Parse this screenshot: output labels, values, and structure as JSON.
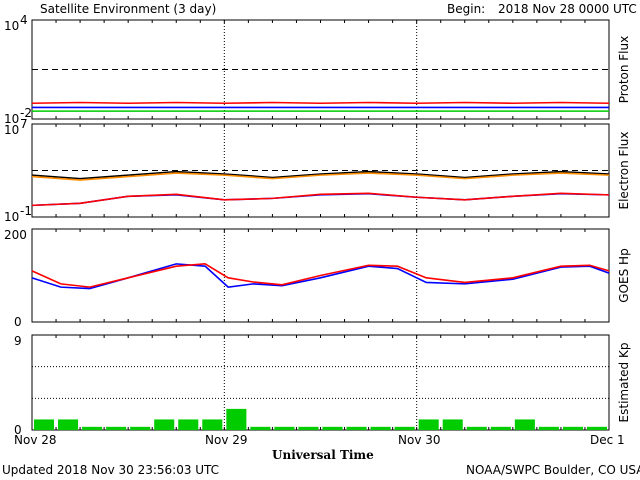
{
  "header": {
    "title": "Satellite Environment (3 day)",
    "begin_label": "Begin:",
    "begin_value": "2018 Nov 28 0000 UTC"
  },
  "footer": {
    "updated": "Updated 2018 Nov 30 23:56:03 UTC",
    "credit": "NOAA/SWPC Boulder, CO USA",
    "xlabel": "Universal Time"
  },
  "chart_data": [
    {
      "type": "line",
      "panel": "proton",
      "ylabel": "Proton Flux",
      "yscale": "log",
      "ylim_exp": [
        -2,
        4
      ],
      "ytick_top": "10",
      "ytick_top_exp": "4",
      "ytick_bottom": "10",
      "ytick_bottom_exp": "-2",
      "threshold": 10,
      "x": [
        0,
        0.25,
        0.5,
        0.75,
        1,
        1.25,
        1.5,
        1.75,
        2,
        2.25,
        2.5,
        2.75,
        3
      ],
      "series": [
        {
          "color": "#ff0000",
          "values": [
            0.09,
            0.1,
            0.09,
            0.1,
            0.09,
            0.1,
            0.09,
            0.1,
            0.09,
            0.1,
            0.09,
            0.1,
            0.09
          ]
        },
        {
          "color": "#0000ff",
          "values": [
            0.05,
            0.05,
            0.05,
            0.05,
            0.05,
            0.05,
            0.05,
            0.05,
            0.05,
            0.05,
            0.05,
            0.05,
            0.05
          ]
        },
        {
          "color": "#00cc00",
          "values": [
            0.03,
            0.03,
            0.03,
            0.03,
            0.03,
            0.03,
            0.03,
            0.03,
            0.03,
            0.03,
            0.03,
            0.03,
            0.03
          ]
        }
      ]
    },
    {
      "type": "line",
      "panel": "electron",
      "ylabel": "Electron Flux",
      "yscale": "log",
      "ylim_exp": [
        -1,
        7
      ],
      "ytick_top": "10",
      "ytick_top_exp": "7",
      "ytick_bottom": "10",
      "ytick_bottom_exp": "-1",
      "threshold": 1000,
      "x": [
        0,
        0.25,
        0.5,
        0.75,
        1,
        1.25,
        1.5,
        1.75,
        2,
        2.25,
        2.5,
        2.75,
        3
      ],
      "series": [
        {
          "color": "#000000",
          "values": [
            400,
            200,
            400,
            800,
            500,
            250,
            500,
            800,
            500,
            250,
            500,
            800,
            500
          ]
        },
        {
          "color": "#ff8c00",
          "values": [
            300,
            150,
            300,
            600,
            400,
            200,
            400,
            600,
            400,
            200,
            400,
            600,
            400
          ]
        },
        {
          "color": "#0000ff",
          "values": [
            1,
            1.5,
            6,
            8,
            3,
            4,
            8,
            10,
            5,
            3,
            6,
            10,
            8
          ]
        },
        {
          "color": "#ff0000",
          "values": [
            1,
            1.5,
            6,
            9,
            3,
            4,
            9,
            11,
            5,
            3,
            6,
            11,
            8
          ]
        }
      ]
    },
    {
      "type": "line",
      "panel": "goes_hp",
      "ylabel": "GOES Hp",
      "ylim": [
        0,
        200
      ],
      "ytick_top": "200",
      "ytick_bottom": "0",
      "x": [
        0,
        0.15,
        0.3,
        0.5,
        0.75,
        0.9,
        1.02,
        1.15,
        1.3,
        1.5,
        1.75,
        1.9,
        2.05,
        2.25,
        2.5,
        2.75,
        2.9,
        3
      ],
      "series": [
        {
          "color": "#0000ff",
          "values": [
            95,
            75,
            72,
            95,
            125,
            120,
            75,
            82,
            78,
            95,
            120,
            115,
            85,
            82,
            92,
            118,
            120,
            105
          ]
        },
        {
          "color": "#ff0000",
          "values": [
            110,
            82,
            75,
            95,
            120,
            125,
            95,
            86,
            80,
            100,
            122,
            120,
            95,
            85,
            95,
            120,
            122,
            110
          ]
        }
      ]
    },
    {
      "type": "bar",
      "panel": "kp",
      "ylabel": "Estimated Kp",
      "ylim": [
        0,
        9
      ],
      "ytick_top": "9",
      "ytick_bottom": "0",
      "color": "#00cc00",
      "bar_values": [
        1,
        1,
        0.3,
        0.3,
        0.3,
        1,
        1,
        1,
        2,
        0.3,
        0.3,
        0.3,
        0.3,
        0.3,
        0.3,
        0.3,
        1,
        1,
        0.3,
        0.3,
        1,
        0.3,
        0.3,
        0.3
      ]
    }
  ],
  "xaxis": {
    "ticks": [
      "Nov 28",
      "Nov 29",
      "Nov 30",
      "Dec 1"
    ]
  }
}
